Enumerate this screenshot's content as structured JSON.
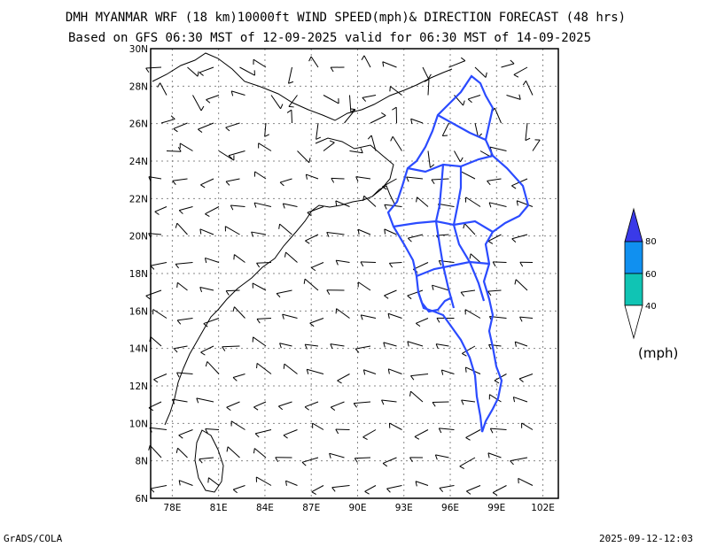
{
  "title": {
    "line1": "DMH MYANMAR WRF (18 km)10000ft WIND SPEED(mph)& DIRECTION FORECAST (48 hrs)",
    "line2": "Based on GFS 06:30 MST of 12-09-2025 valid for 06:30 MST of 14-09-2025"
  },
  "axes": {
    "lat_labels": [
      "30N",
      "28N",
      "26N",
      "24N",
      "22N",
      "20N",
      "18N",
      "16N",
      "14N",
      "12N",
      "10N",
      "8N",
      "6N"
    ],
    "lon_labels": [
      "78E",
      "81E",
      "84E",
      "87E",
      "90E",
      "93E",
      "96E",
      "99E",
      "102E"
    ]
  },
  "colors": {
    "border": "#2b4bff",
    "coast": "#000000",
    "grid": "#888888",
    "legend_low": "#10c4b4",
    "legend_mid": "#1090f0",
    "legend_high": "#3a3ae8"
  },
  "legend": {
    "levels": [
      "40",
      "60",
      "80"
    ],
    "units": "(mph)"
  },
  "footer": {
    "credit": "GrADS/COLA",
    "timestamp": "2025-09-12-12:03"
  }
}
